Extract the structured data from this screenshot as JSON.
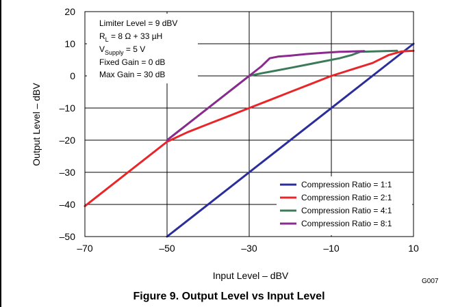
{
  "chart_data": {
    "type": "line",
    "xlabel": "Input Level – dBV",
    "ylabel": "Output Level – dBV",
    "xlim": [
      -70,
      10
    ],
    "ylim": [
      -50,
      20
    ],
    "xticks": [
      -70,
      -50,
      -30,
      -10,
      10
    ],
    "xtick_labels": [
      "–70",
      "–50",
      "–30",
      "–10",
      "10"
    ],
    "yticks": [
      -50,
      -40,
      -30,
      -20,
      -10,
      0,
      10,
      20
    ],
    "ytick_labels": [
      "–50",
      "–40",
      "–30",
      "–20",
      "–10",
      "0",
      "10",
      "20"
    ],
    "grid": true,
    "legend_position": "bottom-right",
    "annotations": [
      {
        "text": "Limiter Level = 9 dBV"
      },
      {
        "main": "R",
        "sub": "L",
        "rest": " = 8 Ω + 33 µH"
      },
      {
        "main": "V",
        "sub": "Supply",
        "rest": " = 5 V"
      },
      {
        "text": "Fixed Gain = 0 dB"
      },
      {
        "text": "Max Gain = 30 dB"
      }
    ],
    "figure_code": "G007",
    "series": [
      {
        "name": "Compression Ratio = 1:1",
        "color": "#2b2e9a",
        "x": [
          -50,
          10
        ],
        "y": [
          -50,
          10
        ]
      },
      {
        "name": "Compression Ratio = 2:1",
        "color": "#e8262a",
        "x": [
          -70,
          -60,
          -50,
          -45,
          -40,
          -35,
          -30,
          -25,
          -20,
          -15,
          -10,
          -5,
          0,
          4,
          7,
          10
        ],
        "y": [
          -40.5,
          -30.5,
          -20.5,
          -17.5,
          -15,
          -12.5,
          -10,
          -7.5,
          -5,
          -2.5,
          0,
          2,
          4,
          6.5,
          7.6,
          7.8
        ]
      },
      {
        "name": "Compression Ratio = 4:1",
        "color": "#3c7a5a",
        "x": [
          -50,
          -45,
          -40,
          -35,
          -30,
          -27,
          -24,
          -20,
          -16,
          -12,
          -8,
          -5,
          -3,
          0,
          3,
          6
        ],
        "y": [
          -20,
          -15,
          -10,
          -5,
          0,
          0.8,
          1.5,
          2.5,
          3.5,
          4.5,
          5.5,
          6.5,
          7.5,
          7.6,
          7.7,
          7.8
        ]
      },
      {
        "name": "Compression Ratio = 8:1",
        "color": "#8b2a8e",
        "x": [
          -50,
          -45,
          -40,
          -35,
          -30,
          -27,
          -25,
          -23,
          -20,
          -16,
          -12,
          -8,
          -5,
          -2
        ],
        "y": [
          -20,
          -15,
          -10,
          -5,
          0,
          3,
          5.5,
          6,
          6.3,
          6.8,
          7.2,
          7.5,
          7.6,
          7.7
        ]
      }
    ]
  },
  "caption": "Figure 9. Output Level vs Input Level"
}
